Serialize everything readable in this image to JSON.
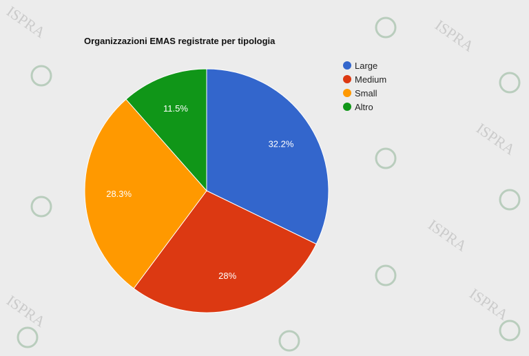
{
  "watermark": {
    "text": "ISPRA"
  },
  "chart_data": {
    "type": "pie",
    "title": "Organizzazioni EMAS registrate per tipologia",
    "categories": [
      "Large",
      "Medium",
      "Small",
      "Altro"
    ],
    "values": [
      32.2,
      28,
      28.3,
      11.5
    ],
    "labels": [
      "32.2%",
      "28%",
      "28.3%",
      "11.5%"
    ],
    "colors": [
      "#3366cc",
      "#dc3912",
      "#ff9900",
      "#109618"
    ],
    "start_angle": "top",
    "direction": "clockwise",
    "legend_position": "right"
  }
}
